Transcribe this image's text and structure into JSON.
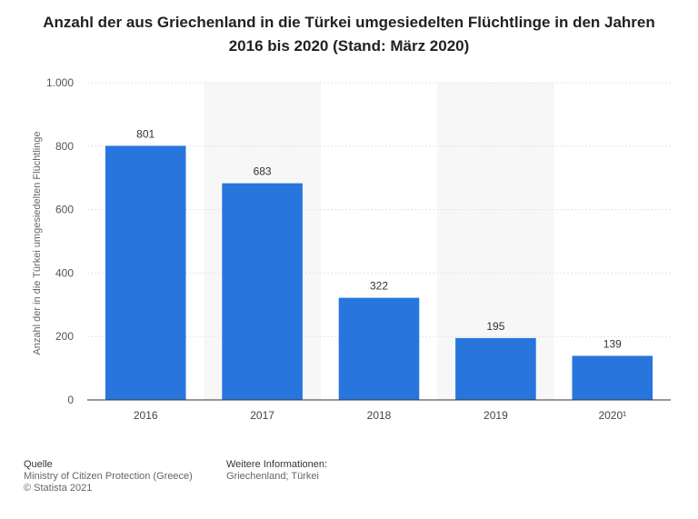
{
  "title_line1": "Anzahl der aus Griechenland in die Türkei umgesiedelten Flüchtlinge in den Jahren",
  "title_line2": "2016 bis 2020 (Stand: März 2020)",
  "chart_data": {
    "type": "bar",
    "title": "Anzahl der aus Griechenland in die Türkei umgesiedelten Flüchtlinge in den Jahren 2016 bis 2020 (Stand: März 2020)",
    "categories": [
      "2016",
      "2017",
      "2018",
      "2019",
      "2020¹"
    ],
    "values": [
      801,
      683,
      322,
      195,
      139
    ],
    "value_labels": [
      "801",
      "683",
      "322",
      "195",
      "139"
    ],
    "xlabel": "",
    "ylabel": "Anzahl der in die Türkei umgesiedelten Flüchtlinge",
    "ylim": [
      0,
      1000
    ],
    "yticks": [
      0,
      200,
      400,
      600,
      800,
      1000
    ],
    "ytick_labels": [
      "0",
      "200",
      "400",
      "600",
      "800",
      "1.000"
    ],
    "grid": true,
    "bar_color": "#2876dd"
  },
  "footer": {
    "source_heading": "Quelle",
    "source_line1": "Ministry of Citizen Protection (Greece)",
    "source_line2": "© Statista 2021",
    "info_heading": "Weitere Informationen:",
    "info_line1": "Griechenland; Türkei"
  }
}
